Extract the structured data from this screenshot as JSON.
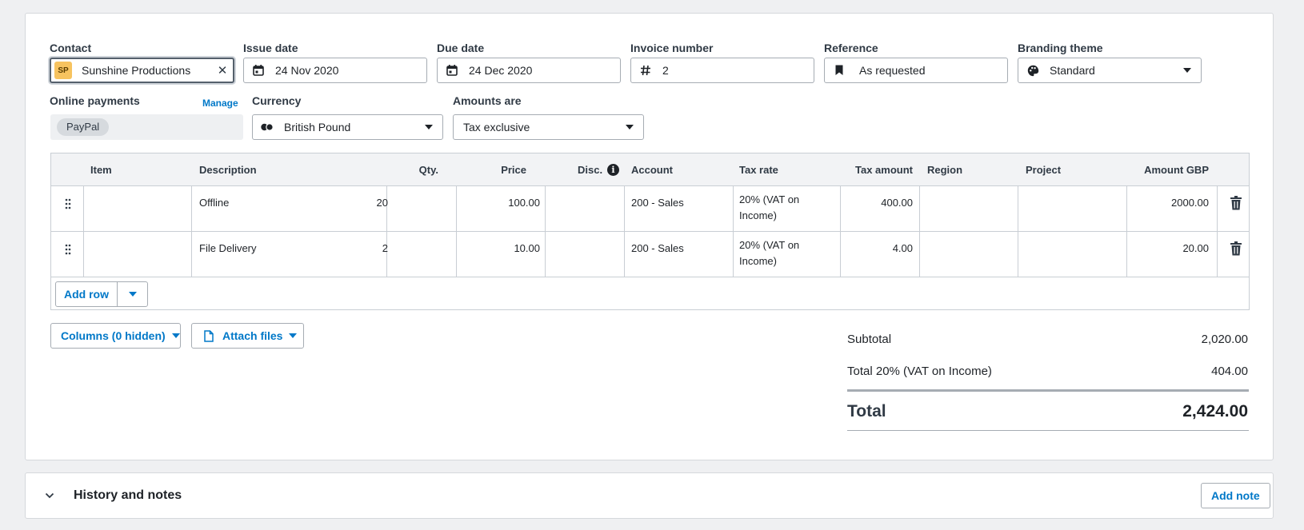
{
  "form": {
    "contact": {
      "label": "Contact",
      "initials": "SP",
      "value": "Sunshine Productions"
    },
    "issue_date": {
      "label": "Issue date",
      "value": "24 Nov 2020"
    },
    "due_date": {
      "label": "Due date",
      "value": "24 Dec 2020"
    },
    "invoice_number": {
      "label": "Invoice number",
      "value": "2"
    },
    "reference": {
      "label": "Reference",
      "value": "As requested"
    },
    "branding_theme": {
      "label": "Branding theme",
      "value": "Standard"
    },
    "online_payments": {
      "label": "Online payments",
      "manage": "Manage",
      "provider": "PayPal"
    },
    "currency": {
      "label": "Currency",
      "value": "British Pound"
    },
    "amounts_are": {
      "label": "Amounts are",
      "value": "Tax exclusive"
    }
  },
  "grid": {
    "headers": {
      "item": "Item",
      "description": "Description",
      "qty": "Qty.",
      "price": "Price",
      "disc": "Disc.",
      "account": "Account",
      "tax_rate": "Tax rate",
      "tax_amount": "Tax amount",
      "region": "Region",
      "project": "Project",
      "amount": "Amount GBP"
    },
    "rows": [
      {
        "item": "",
        "description": "Offline",
        "qty": "20",
        "price": "100.00",
        "disc": "",
        "account": "200 - Sales",
        "tax_rate": "20% (VAT on Income)",
        "tax_amount": "400.00",
        "region": "",
        "project": "",
        "amount": "2000.00"
      },
      {
        "item": "",
        "description": "File Delivery",
        "qty": "2",
        "price": "10.00",
        "disc": "",
        "account": "200 - Sales",
        "tax_rate": "20% (VAT on Income)",
        "tax_amount": "4.00",
        "region": "",
        "project": "",
        "amount": "20.00"
      }
    ],
    "add_row": "Add row"
  },
  "actions": {
    "columns": "Columns (0 hidden)",
    "attach": "Attach files"
  },
  "totals": {
    "subtotal_label": "Subtotal",
    "subtotal": "2,020.00",
    "tax_label": "Total 20% (VAT on Income)",
    "tax": "404.00",
    "total_label": "Total",
    "total": "2,424.00"
  },
  "history": {
    "title": "History and notes",
    "add_note": "Add note"
  },
  "colors": {
    "accent": "#0078c8",
    "badge": "#f7c35f"
  }
}
